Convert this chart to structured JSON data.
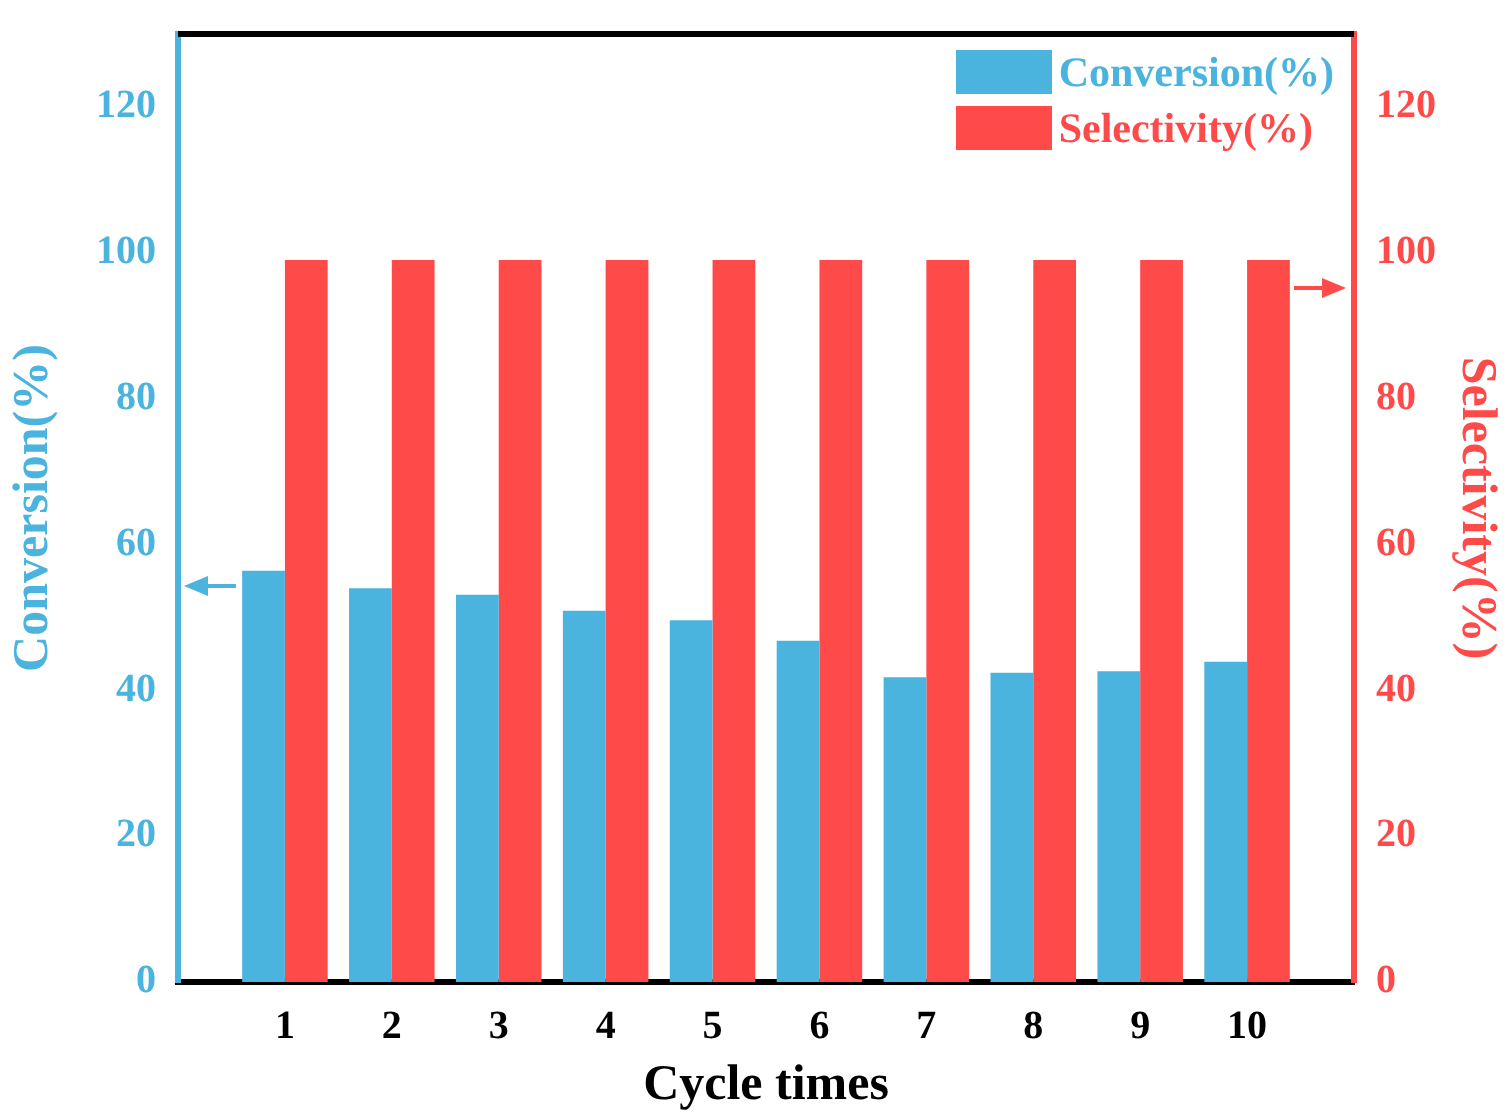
{
  "chart_data": {
    "type": "bar",
    "xlabel": "Cycle times",
    "ylabel": "Conversion(%)",
    "y2label": "Selectivity(%)",
    "x": [
      1,
      2,
      3,
      4,
      5,
      6,
      7,
      8,
      9,
      10
    ],
    "xlim": [
      0,
      11
    ],
    "xticks": [
      1,
      2,
      3,
      4,
      5,
      6,
      7,
      8,
      9,
      10
    ],
    "ylim": [
      0,
      130
    ],
    "yticks": [
      0,
      20,
      40,
      60,
      80,
      100,
      120
    ],
    "y2lim": [
      0,
      130
    ],
    "y2ticks": [
      0,
      20,
      40,
      60,
      80,
      100,
      120
    ],
    "series": [
      {
        "name": "Conversion(%)",
        "color": "#4ab3de",
        "values": [
          56.4,
          54.0,
          53.1,
          50.9,
          49.6,
          46.8,
          41.8,
          42.4,
          42.6,
          43.9
        ]
      },
      {
        "name": "Selectivity(%)",
        "color": "#ff4a4a",
        "axis": "y2",
        "values": [
          99,
          99,
          99,
          99,
          99,
          99,
          99,
          99,
          99,
          99
        ]
      }
    ],
    "legend": "top right",
    "grid": false
  }
}
